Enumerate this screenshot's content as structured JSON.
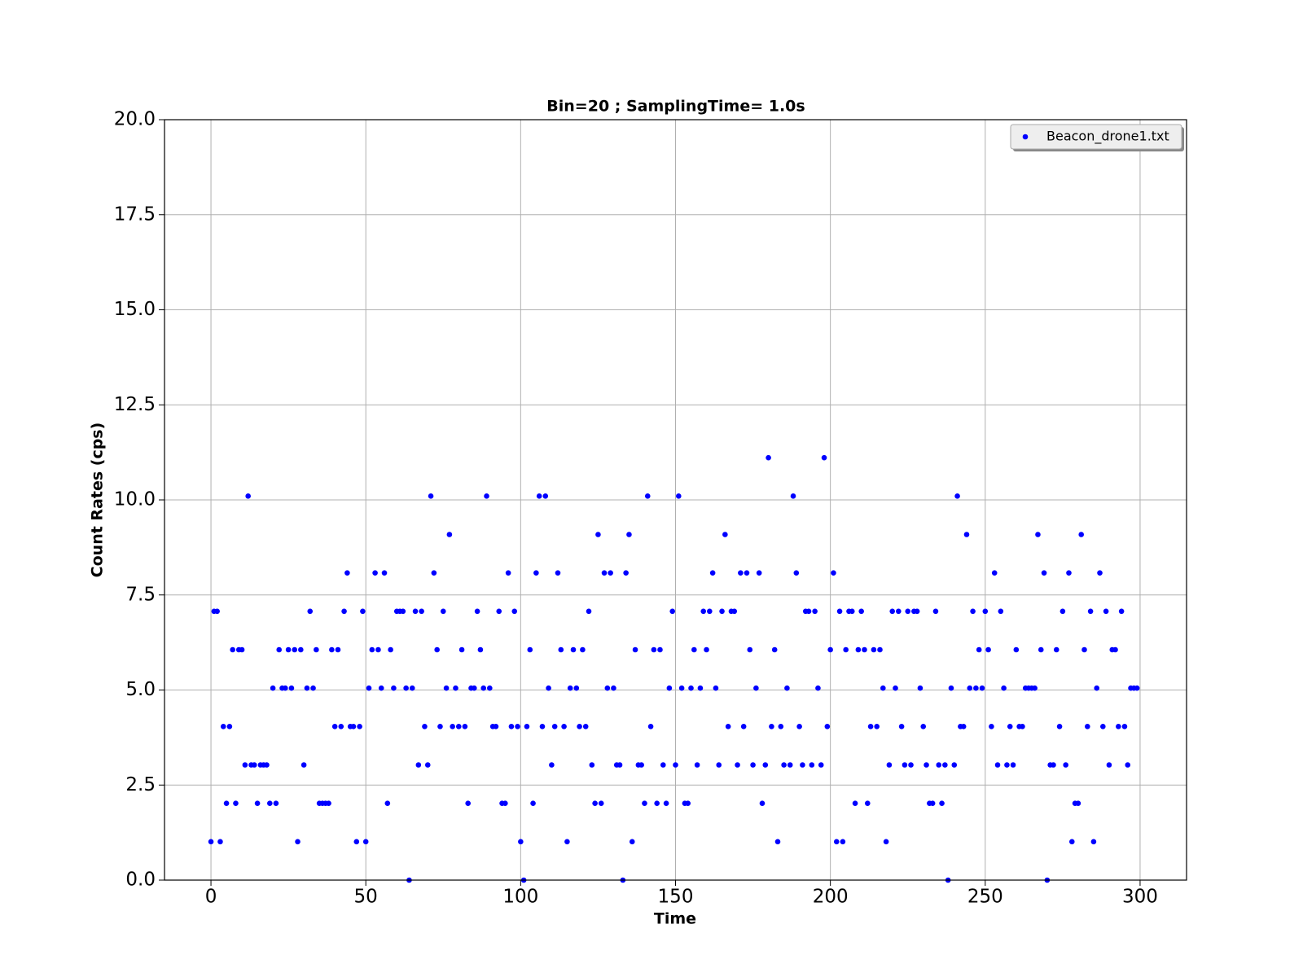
{
  "chart_data": {
    "type": "scatter",
    "title": "Bin=20 ; SamplingTime=   1.0s",
    "xlabel": "Time",
    "ylabel": "Count Rates (cps)",
    "xlim": [
      -15,
      315
    ],
    "ylim": [
      0,
      20
    ],
    "xticks": [
      0,
      50,
      100,
      150,
      200,
      250,
      300
    ],
    "yticks": [
      {
        "value": 0,
        "label": "0.0"
      },
      2.5,
      {
        "value": 5,
        "label": "5.0"
      },
      7.5,
      {
        "value": 10,
        "label": "10.0"
      },
      12.5,
      {
        "value": 15,
        "label": "15.0"
      },
      17.5,
      {
        "value": 20,
        "label": "20.0"
      }
    ],
    "grid": true,
    "legend": "upper right",
    "x": [
      0,
      1,
      2,
      3,
      4,
      5,
      6,
      7,
      8,
      9,
      10,
      11,
      12,
      13,
      14,
      15,
      16,
      17,
      18,
      19,
      20,
      21,
      22,
      23,
      24,
      25,
      26,
      27,
      28,
      29,
      30,
      31,
      32,
      33,
      34,
      35,
      36,
      37,
      38,
      39,
      40,
      41,
      42,
      43,
      44,
      45,
      46,
      47,
      48,
      49,
      50,
      51,
      52,
      53,
      54,
      55,
      56,
      57,
      58,
      59,
      60,
      61,
      62,
      63,
      64,
      65,
      66,
      67,
      68,
      69,
      70,
      71,
      72,
      73,
      74,
      75,
      76,
      77,
      78,
      79,
      80,
      81,
      82,
      83,
      84,
      85,
      86,
      87,
      88,
      89,
      90,
      91,
      92,
      93,
      94,
      95,
      96,
      97,
      98,
      99,
      100,
      101,
      102,
      103,
      104,
      105,
      106,
      107,
      108,
      109,
      110,
      111,
      112,
      113,
      114,
      115,
      116,
      117,
      118,
      119,
      120,
      121,
      122,
      123,
      124,
      125,
      126,
      127,
      128,
      129,
      130,
      131,
      132,
      133,
      134,
      135,
      136,
      137,
      138,
      139,
      140,
      141,
      142,
      143,
      144,
      145,
      146,
      147,
      148,
      149,
      150,
      151,
      152,
      153,
      154,
      155,
      156,
      157,
      158,
      159,
      160,
      161,
      162,
      163,
      164,
      165,
      166,
      167,
      168,
      169,
      170,
      171,
      172,
      173,
      174,
      175,
      176,
      177,
      178,
      179,
      180,
      181,
      182,
      183,
      184,
      185,
      186,
      187,
      188,
      189,
      190,
      191,
      192,
      193,
      194,
      195,
      196,
      197,
      198,
      199,
      200,
      201,
      202,
      203,
      204,
      205,
      206,
      207,
      208,
      209,
      210,
      211,
      212,
      213,
      214,
      215,
      216,
      217,
      218,
      219,
      220,
      221,
      222,
      223,
      224,
      225,
      226,
      227,
      228,
      229,
      230,
      231,
      232,
      233,
      234,
      235,
      236,
      237,
      238,
      239,
      240,
      241,
      242,
      243,
      244,
      245,
      246,
      247,
      248,
      249,
      250,
      251,
      252,
      253,
      254,
      255,
      256,
      257,
      258,
      259,
      260,
      261,
      262,
      263,
      264,
      265,
      266,
      267,
      268,
      269,
      270,
      271,
      272,
      273,
      274,
      275,
      276,
      277,
      278,
      279,
      280,
      281,
      282,
      283,
      284,
      285,
      286,
      287,
      288,
      289,
      290,
      291,
      292,
      293,
      294,
      295,
      296,
      297,
      298,
      299
    ],
    "series": [
      {
        "name": "Beacon_drone1.txt",
        "color": "blue",
        "values": [
          1.01,
          7.07,
          7.07,
          1.01,
          4.04,
          2.02,
          4.04,
          6.06,
          2.02,
          6.06,
          6.06,
          3.03,
          10.1,
          3.03,
          3.03,
          2.02,
          3.03,
          3.03,
          3.03,
          2.02,
          5.05,
          2.02,
          6.06,
          5.05,
          5.05,
          6.06,
          5.05,
          6.06,
          1.01,
          6.06,
          3.03,
          5.05,
          7.07,
          5.05,
          6.06,
          2.02,
          2.02,
          2.02,
          2.02,
          6.06,
          4.04,
          6.06,
          4.04,
          7.07,
          8.08,
          4.04,
          4.04,
          1.01,
          4.04,
          7.07,
          1.01,
          5.05,
          6.06,
          8.08,
          6.06,
          5.05,
          8.08,
          2.02,
          6.06,
          5.05,
          7.07,
          7.07,
          7.07,
          5.05,
          0,
          5.05,
          7.07,
          3.03,
          7.07,
          4.04,
          3.03,
          10.1,
          8.08,
          6.06,
          4.04,
          7.07,
          5.05,
          9.09,
          4.04,
          5.05,
          4.04,
          6.06,
          4.04,
          2.02,
          5.05,
          5.05,
          7.07,
          6.06,
          5.05,
          10.1,
          5.05,
          4.04,
          4.04,
          7.07,
          2.02,
          2.02,
          8.08,
          4.04,
          7.07,
          4.04,
          1.01,
          0,
          4.04,
          6.06,
          2.02,
          8.08,
          10.1,
          4.04,
          10.1,
          5.05,
          3.03,
          4.04,
          8.08,
          6.06,
          4.04,
          1.01,
          5.05,
          6.06,
          5.05,
          4.04,
          6.06,
          4.04,
          7.07,
          3.03,
          2.02,
          9.09,
          2.02,
          8.08,
          5.05,
          8.08,
          5.05,
          3.03,
          3.03,
          0,
          8.08,
          9.09,
          1.01,
          6.06,
          3.03,
          3.03,
          2.02,
          10.1,
          4.04,
          6.06,
          2.02,
          6.06,
          3.03,
          2.02,
          5.05,
          7.07,
          3.03,
          10.1,
          5.05,
          2.02,
          2.02,
          5.05,
          6.06,
          3.03,
          5.05,
          7.07,
          6.06,
          7.07,
          8.08,
          5.05,
          3.03,
          7.07,
          9.09,
          4.04,
          7.07,
          7.07,
          3.03,
          8.08,
          4.04,
          8.08,
          6.06,
          3.03,
          5.05,
          8.08,
          2.02,
          3.03,
          11.11,
          4.04,
          6.06,
          1.01,
          4.04,
          3.03,
          5.05,
          3.03,
          10.1,
          8.08,
          4.04,
          3.03,
          7.07,
          7.07,
          3.03,
          7.07,
          5.05,
          3.03,
          11.11,
          4.04,
          6.06,
          8.08,
          1.01,
          7.07,
          1.01,
          6.06,
          7.07,
          7.07,
          2.02,
          6.06,
          7.07,
          6.06,
          2.02,
          4.04,
          6.06,
          4.04,
          6.06,
          5.05,
          1.01,
          3.03,
          7.07,
          5.05,
          7.07,
          4.04,
          3.03,
          7.07,
          3.03,
          7.07,
          7.07,
          5.05,
          4.04,
          3.03,
          2.02,
          2.02,
          7.07,
          3.03,
          2.02,
          3.03,
          0,
          5.05,
          3.03,
          10.1,
          4.04,
          4.04,
          9.09,
          5.05,
          7.07,
          5.05,
          6.06,
          5.05,
          7.07,
          6.06,
          4.04,
          8.08,
          3.03,
          7.07,
          5.05,
          3.03,
          4.04,
          3.03,
          6.06,
          4.04,
          4.04,
          5.05,
          5.05,
          5.05,
          5.05,
          9.09,
          6.06,
          8.08,
          0,
          3.03,
          3.03,
          6.06,
          4.04,
          7.07,
          3.03,
          8.08,
          1.01,
          2.02,
          2.02,
          9.09,
          6.06,
          4.04,
          7.07,
          1.01,
          5.05,
          8.08,
          4.04,
          7.07,
          3.03,
          6.06,
          6.06,
          4.04,
          7.07,
          4.04,
          3.03,
          5.05,
          5.05,
          5.05
        ]
      }
    ]
  }
}
